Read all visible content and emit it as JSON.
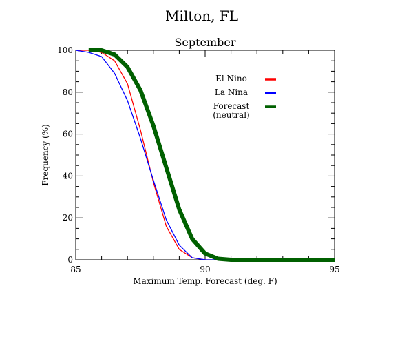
{
  "chart_data": {
    "type": "line",
    "title": "Milton, FL",
    "subtitle": "September",
    "xlabel": "Maximum Temp. Forecast (deg. F)",
    "ylabel": "Frequency (%)",
    "xlim": [
      85,
      95
    ],
    "ylim": [
      0,
      100
    ],
    "xticks": [
      85,
      90,
      95
    ],
    "xtick_labels": [
      "85",
      "90",
      "95"
    ],
    "yticks": [
      0,
      20,
      40,
      60,
      80,
      100
    ],
    "ytick_labels": [
      "0",
      "20",
      "40",
      "60",
      "80",
      "100"
    ],
    "legend_position": "top-right",
    "grid": false,
    "series": [
      {
        "name": "El Nino",
        "color": "#ff0000",
        "x": [
          85,
          85.5,
          86,
          86.5,
          87,
          87.5,
          88,
          88.5,
          89,
          89.5,
          90,
          90.5,
          91,
          92,
          93,
          94,
          95
        ],
        "y": [
          100,
          100,
          99,
          95,
          84,
          62,
          37,
          16,
          5,
          1,
          0,
          0,
          0,
          0,
          0,
          0,
          0
        ]
      },
      {
        "name": "La Nina",
        "color": "#0000ff",
        "x": [
          85,
          85.5,
          86,
          86.5,
          87,
          87.5,
          88,
          88.5,
          89,
          89.5,
          90,
          90.5,
          91,
          92,
          93,
          94,
          95
        ],
        "y": [
          100,
          99,
          97,
          89,
          76,
          58,
          38,
          19,
          7,
          1,
          0,
          0,
          0,
          0,
          0,
          0,
          0
        ]
      },
      {
        "name": "Forecast\n(neutral)",
        "color": "#006000",
        "x": [
          85.5,
          86,
          86.5,
          87,
          87.5,
          88,
          88.5,
          89,
          89.5,
          90,
          90.5,
          91,
          92,
          93,
          94,
          95
        ],
        "y": [
          100,
          100,
          98,
          92,
          81,
          64,
          44,
          24,
          10,
          3,
          0.5,
          0,
          0,
          0,
          0,
          0
        ]
      }
    ]
  }
}
